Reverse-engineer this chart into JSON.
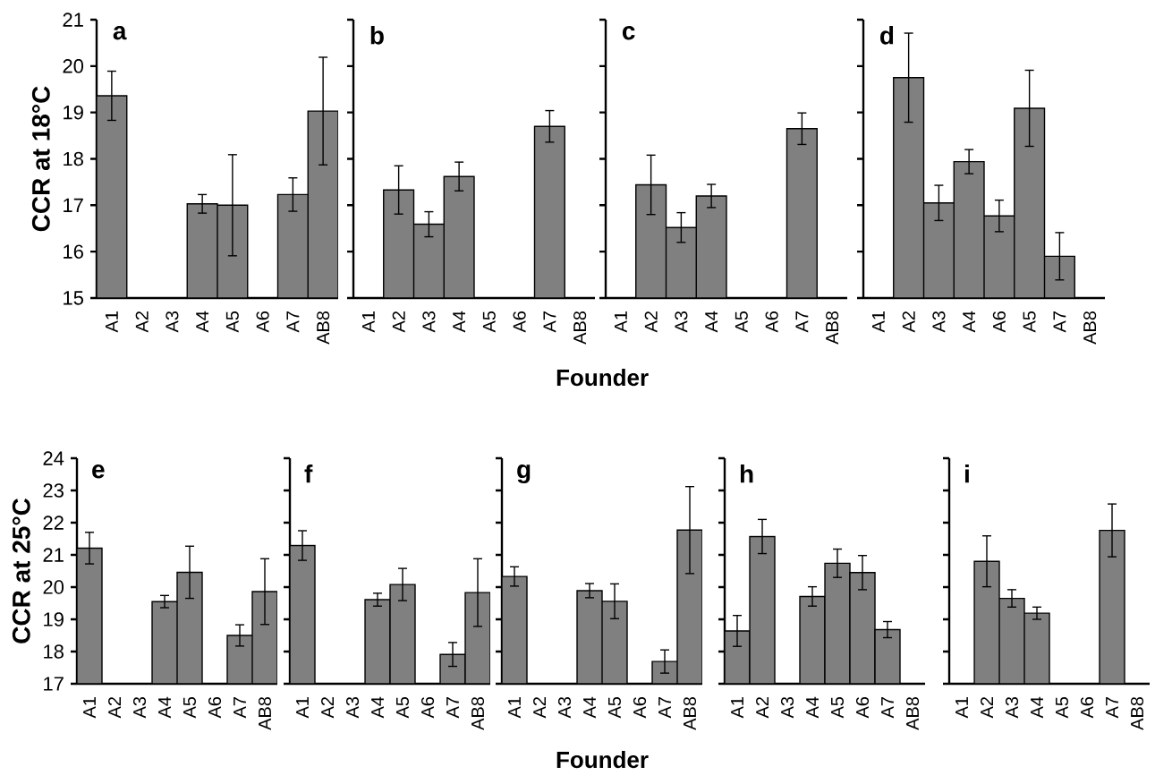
{
  "chart_data": [
    {
      "type": "bar",
      "ylabel": "CCR at 18°C",
      "annotations": [
        "a"
      ],
      "categories": [
        "A1",
        "A2",
        "A3",
        "A4",
        "A5",
        "A6",
        "A7",
        "AB8"
      ],
      "values": [
        19.36,
        null,
        null,
        17.03,
        17.0,
        null,
        17.23,
        19.03
      ],
      "errors": [
        0.53,
        null,
        null,
        0.2,
        1.09,
        null,
        0.36,
        1.16
      ],
      "color": "#808080",
      "ylim": [
        15,
        21
      ],
      "yticks": [
        15,
        16,
        17,
        18,
        19,
        20,
        21
      ]
    },
    {
      "type": "bar",
      "xlabel": "Founder",
      "annotations": [
        "b"
      ],
      "categories": [
        "A1",
        "A2",
        "A3",
        "A4",
        "A5",
        "A6",
        "A7",
        "AB8"
      ],
      "values": [
        null,
        17.33,
        16.59,
        17.62,
        null,
        null,
        18.7,
        null
      ],
      "errors": [
        null,
        0.52,
        0.27,
        0.31,
        null,
        null,
        0.34,
        null
      ],
      "color": "#808080",
      "ylim": [
        15,
        21
      ],
      "yticks": [
        15,
        16,
        17,
        18,
        19,
        20,
        21
      ],
      "tick_labels": "x"
    },
    {
      "type": "bar",
      "annotations": [
        "c"
      ],
      "categories": [
        "A1",
        "A2",
        "A3",
        "A4",
        "A5",
        "A6",
        "A7",
        "AB8"
      ],
      "values": [
        null,
        17.44,
        16.52,
        17.2,
        null,
        null,
        18.65,
        null
      ],
      "errors": [
        null,
        0.64,
        0.32,
        0.25,
        null,
        null,
        0.34,
        null
      ],
      "color": "#808080",
      "ylim": [
        15,
        21
      ],
      "yticks": [
        15,
        16,
        17,
        18,
        19,
        20,
        21
      ],
      "tick_labels": "x"
    },
    {
      "type": "bar",
      "annotations": [
        "d"
      ],
      "categories": [
        "A1",
        "A2",
        "A3",
        "A4",
        "A6",
        "A5",
        "A7",
        "AB8"
      ],
      "values": [
        null,
        19.75,
        17.05,
        17.94,
        16.77,
        19.09,
        15.9,
        null
      ],
      "errors": [
        null,
        0.96,
        0.38,
        0.26,
        0.34,
        0.82,
        0.51,
        null
      ],
      "color": "#808080",
      "ylim": [
        15,
        21
      ],
      "yticks": [
        15,
        16,
        17,
        18,
        19,
        20,
        21
      ],
      "tick_labels": "x"
    },
    {
      "type": "bar",
      "ylabel": "CCR at 25°C",
      "annotations": [
        "e"
      ],
      "categories": [
        "A1",
        "A2",
        "A3",
        "A4",
        "A5",
        "A6",
        "A7",
        "AB8"
      ],
      "values": [
        21.21,
        null,
        null,
        19.55,
        20.46,
        null,
        18.5,
        19.86
      ],
      "errors": [
        0.49,
        null,
        null,
        0.19,
        0.81,
        null,
        0.33,
        1.02
      ],
      "color": "#808080",
      "ylim": [
        17,
        24
      ],
      "yticks": [
        17,
        18,
        19,
        20,
        21,
        22,
        23,
        24
      ]
    },
    {
      "type": "bar",
      "annotations": [
        "f"
      ],
      "categories": [
        "A1",
        "A2",
        "A3",
        "A4",
        "A5",
        "A6",
        "A7",
        "AB8"
      ],
      "values": [
        21.29,
        null,
        null,
        19.61,
        20.08,
        null,
        17.91,
        19.83
      ],
      "errors": [
        0.46,
        null,
        null,
        0.2,
        0.5,
        null,
        0.37,
        1.05
      ],
      "color": "#808080",
      "ylim": [
        17,
        24
      ],
      "yticks": [
        17,
        18,
        19,
        20,
        21,
        22,
        23,
        24
      ],
      "tick_labels": "x"
    },
    {
      "type": "bar",
      "xlabel": "Founder",
      "annotations": [
        "g"
      ],
      "categories": [
        "A1",
        "A2",
        "A3",
        "A4",
        "A5",
        "A6",
        "A7",
        "AB8"
      ],
      "values": [
        20.33,
        null,
        null,
        19.89,
        19.56,
        null,
        17.69,
        21.77
      ],
      "errors": [
        0.3,
        null,
        null,
        0.22,
        0.54,
        null,
        0.36,
        1.35
      ],
      "color": "#808080",
      "ylim": [
        17,
        24
      ],
      "yticks": [
        17,
        18,
        19,
        20,
        21,
        22,
        23,
        24
      ],
      "tick_labels": "x"
    },
    {
      "type": "bar",
      "annotations": [
        "h"
      ],
      "categories": [
        "A1",
        "A2",
        "A3",
        "A4",
        "A5",
        "A6",
        "A7",
        "AB8"
      ],
      "values": [
        18.64,
        21.57,
        null,
        19.71,
        20.74,
        20.45,
        18.68,
        null
      ],
      "errors": [
        0.48,
        0.53,
        null,
        0.3,
        0.44,
        0.53,
        0.25,
        null
      ],
      "color": "#808080",
      "ylim": [
        17,
        24
      ],
      "yticks": [
        17,
        18,
        19,
        20,
        21,
        22,
        23,
        24
      ],
      "tick_labels": "x"
    },
    {
      "type": "bar",
      "annotations": [
        "i"
      ],
      "categories": [
        "A1",
        "A2",
        "A3",
        "A4",
        "A5",
        "A6",
        "A7",
        "AB8"
      ],
      "values": [
        null,
        20.8,
        19.65,
        19.19,
        null,
        null,
        21.76,
        null
      ],
      "errors": [
        null,
        0.79,
        0.27,
        0.19,
        null,
        null,
        0.82,
        null
      ],
      "color": "#808080",
      "ylim": [
        17,
        24
      ],
      "yticks": [
        17,
        18,
        19,
        20,
        21,
        22,
        23,
        24
      ],
      "tick_labels": "x"
    }
  ]
}
